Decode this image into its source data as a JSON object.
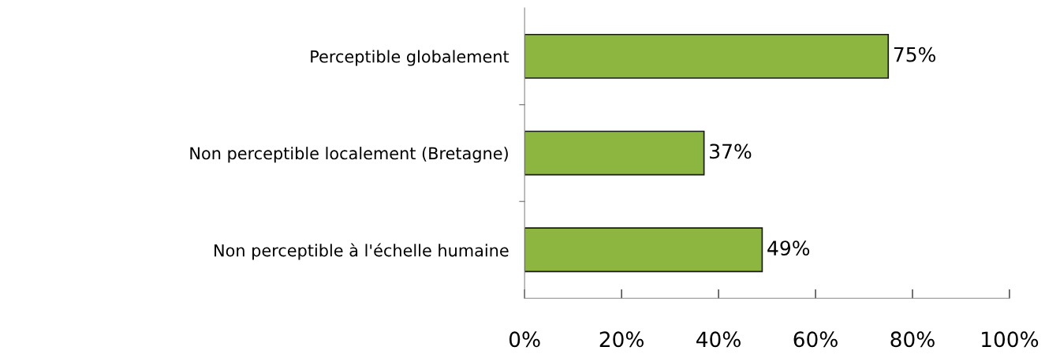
{
  "chart_data": {
    "type": "bar",
    "orientation": "horizontal",
    "categories": [
      "Perceptible globalement",
      "Non perceptible localement (Bretagne)",
      "Non perceptible à l'échelle humaine"
    ],
    "values": [
      75,
      37,
      49
    ],
    "value_labels": [
      "75%",
      "37%",
      "49%"
    ],
    "color": "#8db640",
    "xlim": [
      0,
      100
    ],
    "xticks": [
      {
        "value": 0,
        "label": "0%"
      },
      {
        "value": 20,
        "label": "20%"
      },
      {
        "value": 40,
        "label": "40%"
      },
      {
        "value": 60,
        "label": "60%"
      },
      {
        "value": 80,
        "label": "80%"
      },
      {
        "value": 100,
        "label": "100%"
      }
    ],
    "grid": false,
    "legend": false
  }
}
